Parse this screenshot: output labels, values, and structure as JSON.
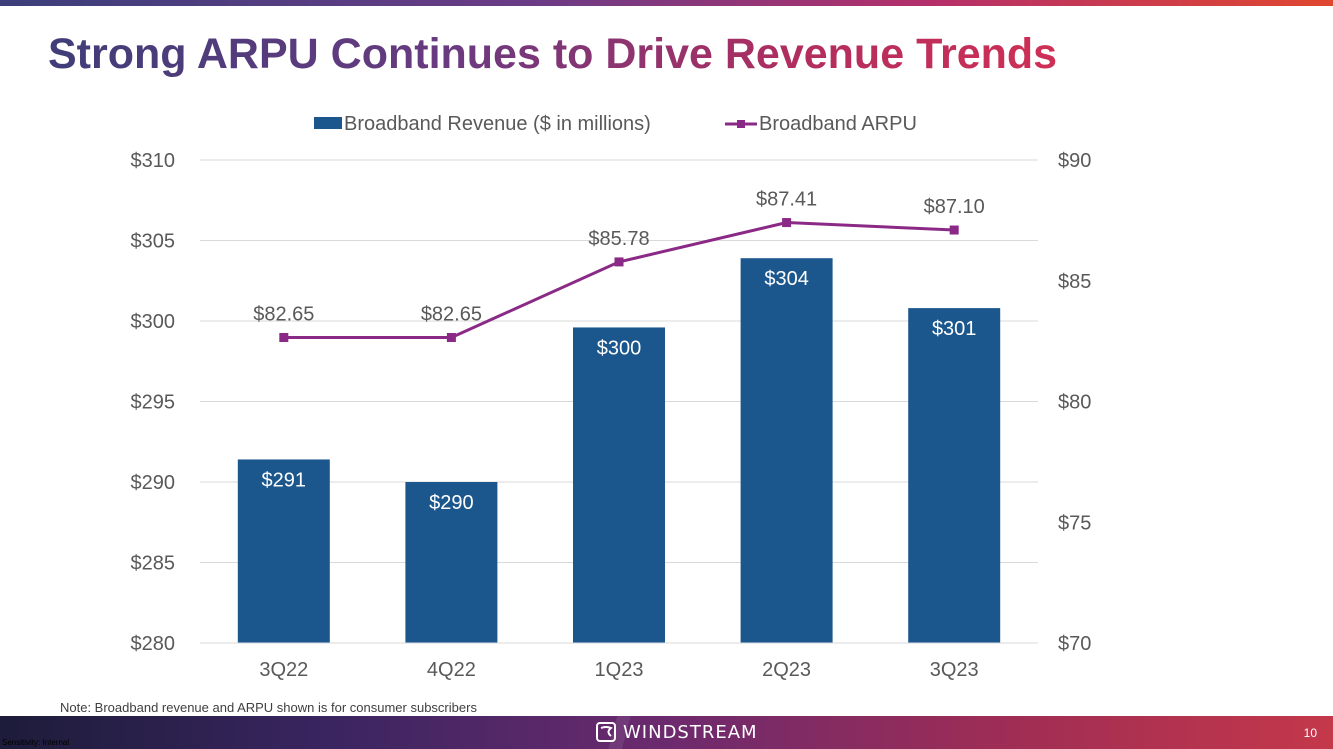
{
  "slide": {
    "title": "Strong ARPU Continues to Drive Revenue Trends",
    "note": "Note: Broadband revenue and ARPU shown is for consumer subscribers",
    "page_number": "10",
    "sensitivity": "Sensitivity: Internal",
    "logo_text": "WINDSTREAM"
  },
  "colors": {
    "bar": "#1b578d",
    "line": "#8b2a86",
    "grid": "#d9d9d9",
    "axis_text": "#595959"
  },
  "chart_data": {
    "type": "bar",
    "title": "",
    "categories": [
      "3Q22",
      "4Q22",
      "1Q23",
      "2Q23",
      "3Q23"
    ],
    "series": [
      {
        "name": "Broadband Revenue ($ in millions)",
        "type": "bar",
        "axis": "left",
        "values": [
          291.4,
          290.0,
          299.6,
          303.9,
          300.8
        ],
        "labels": [
          "$291",
          "$290",
          "$300",
          "$304",
          "$301"
        ]
      },
      {
        "name": "Broadband ARPU",
        "type": "line",
        "axis": "right",
        "values": [
          82.65,
          82.65,
          85.78,
          87.41,
          87.1
        ],
        "labels": [
          "$82.65",
          "$82.65",
          "$85.78",
          "$87.41",
          "$87.10"
        ]
      }
    ],
    "ylim_left": [
      280,
      310
    ],
    "yticks_left": [
      "$310",
      "$305",
      "$300",
      "$295",
      "$290",
      "$285",
      "$280"
    ],
    "ylim_right": [
      70,
      90
    ],
    "yticks_right": [
      "$90",
      "$85",
      "$80",
      "$75",
      "$70"
    ],
    "legend": "top-center",
    "grid": true
  }
}
